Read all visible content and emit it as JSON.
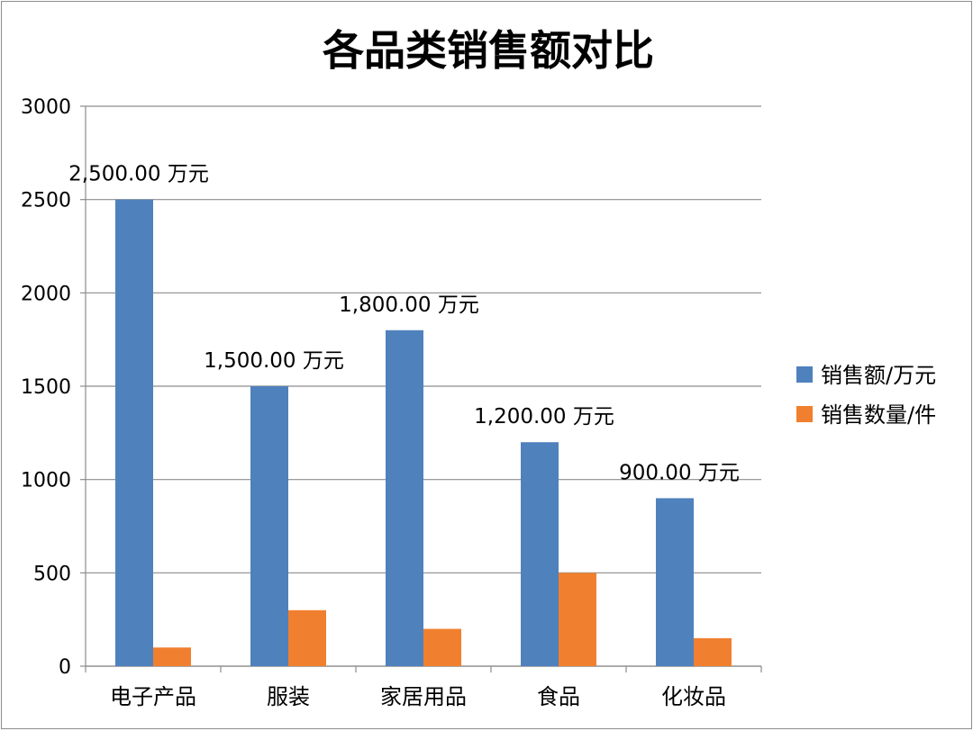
{
  "chart_data": {
    "type": "bar",
    "title": "各品类销售额对比",
    "xlabel": "",
    "ylabel": "",
    "categories": [
      "电子产品",
      "服装",
      "家居用品",
      "食品",
      "化妆品"
    ],
    "series": [
      {
        "name": "销售额/万元",
        "color": "#4f81bd",
        "values": [
          2500,
          1500,
          1800,
          1200,
          900
        ],
        "data_labels": [
          "2,500.00 万元",
          "1,500.00 万元",
          "1,800.00 万元",
          "1,200.00 万元",
          "900.00 万元"
        ]
      },
      {
        "name": "销售数量/件",
        "color": "#f0802f",
        "values": [
          100,
          300,
          200,
          500,
          150
        ],
        "data_labels": []
      }
    ],
    "ylim": [
      0,
      3000
    ],
    "yticks": [
      "0",
      "500",
      "1000",
      "1500",
      "2000",
      "2500",
      "3000"
    ],
    "grid": true,
    "legend_position": "right"
  }
}
